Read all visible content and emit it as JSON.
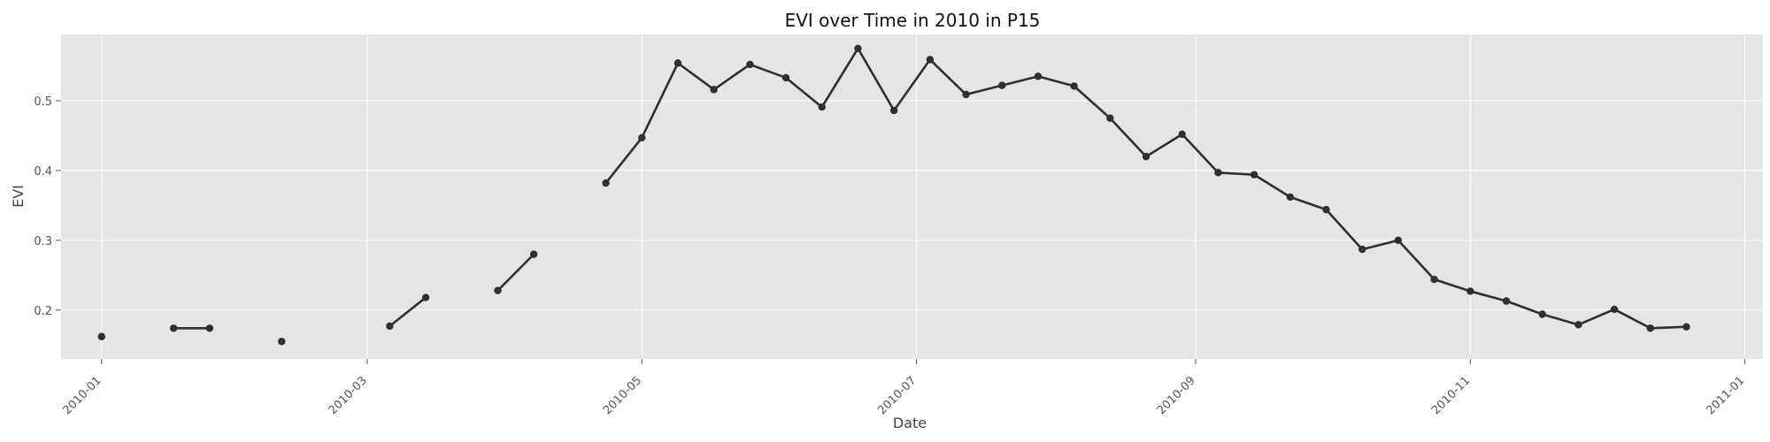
{
  "chart_data": {
    "type": "line",
    "title": "EVI over Time in 2010 in P15",
    "xlabel": "Date",
    "ylabel": "EVI",
    "x_axis_type": "date",
    "xlim": [
      "2009-12-23",
      "2011-01-05"
    ],
    "ylim": [
      0.13,
      0.595
    ],
    "grid": true,
    "legend": "none",
    "x_ticks": [
      "2010-01",
      "2010-03",
      "2010-05",
      "2010-07",
      "2010-09",
      "2010-11",
      "2011-01"
    ],
    "x_tick_dates": [
      "2010-01-01",
      "2010-03-01",
      "2010-05-01",
      "2010-07-01",
      "2010-09-01",
      "2010-11-01",
      "2011-01-01"
    ],
    "y_ticks": [
      0.2,
      0.3,
      0.4,
      0.5
    ],
    "y_tick_labels": [
      "0.2",
      "0.3",
      "0.4",
      "0.5"
    ],
    "colors": {
      "plot_background": "#e5e5e5",
      "grid": "#ffffff",
      "line": "#2f2f2f",
      "marker": "#2f2f2f"
    },
    "series": [
      {
        "values": [
          {
            "x": "2010-01-01",
            "y": 0.162
          },
          {
            "x": "2010-01-17",
            "y": 0.174
          },
          {
            "x": "2010-01-25",
            "y": 0.174
          },
          {
            "x": "2010-02-10",
            "y": 0.155
          },
          {
            "x": "2010-03-06",
            "y": 0.177
          },
          {
            "x": "2010-03-14",
            "y": 0.218
          },
          {
            "x": "2010-03-30",
            "y": 0.228
          },
          {
            "x": "2010-04-07",
            "y": 0.28
          },
          {
            "x": "2010-04-23",
            "y": 0.382
          },
          {
            "x": "2010-05-01",
            "y": 0.447
          },
          {
            "x": "2010-05-09",
            "y": 0.554
          },
          {
            "x": "2010-05-17",
            "y": 0.516
          },
          {
            "x": "2010-05-25",
            "y": 0.552
          },
          {
            "x": "2010-06-02",
            "y": 0.533
          },
          {
            "x": "2010-06-10",
            "y": 0.491
          },
          {
            "x": "2010-06-18",
            "y": 0.575
          },
          {
            "x": "2010-06-26",
            "y": 0.486
          },
          {
            "x": "2010-07-04",
            "y": 0.559
          },
          {
            "x": "2010-07-12",
            "y": 0.509
          },
          {
            "x": "2010-07-20",
            "y": 0.522
          },
          {
            "x": "2010-07-28",
            "y": 0.535
          },
          {
            "x": "2010-08-05",
            "y": 0.521
          },
          {
            "x": "2010-08-13",
            "y": 0.475
          },
          {
            "x": "2010-08-21",
            "y": 0.42
          },
          {
            "x": "2010-08-29",
            "y": 0.452
          },
          {
            "x": "2010-09-06",
            "y": 0.397
          },
          {
            "x": "2010-09-14",
            "y": 0.394
          },
          {
            "x": "2010-09-22",
            "y": 0.362
          },
          {
            "x": "2010-09-30",
            "y": 0.344
          },
          {
            "x": "2010-10-08",
            "y": 0.287
          },
          {
            "x": "2010-10-16",
            "y": 0.3
          },
          {
            "x": "2010-10-24",
            "y": 0.244
          },
          {
            "x": "2010-11-01",
            "y": 0.227
          },
          {
            "x": "2010-11-09",
            "y": 0.213
          },
          {
            "x": "2010-11-17",
            "y": 0.194
          },
          {
            "x": "2010-11-25",
            "y": 0.179
          },
          {
            "x": "2010-12-03",
            "y": 0.201
          },
          {
            "x": "2010-12-11",
            "y": 0.174
          },
          {
            "x": "2010-12-19",
            "y": 0.176
          }
        ],
        "segments": [
          [
            0,
            0
          ],
          [
            1,
            2
          ],
          [
            3,
            3
          ],
          [
            4,
            5
          ],
          [
            6,
            7
          ],
          [
            8,
            38
          ]
        ]
      }
    ]
  }
}
